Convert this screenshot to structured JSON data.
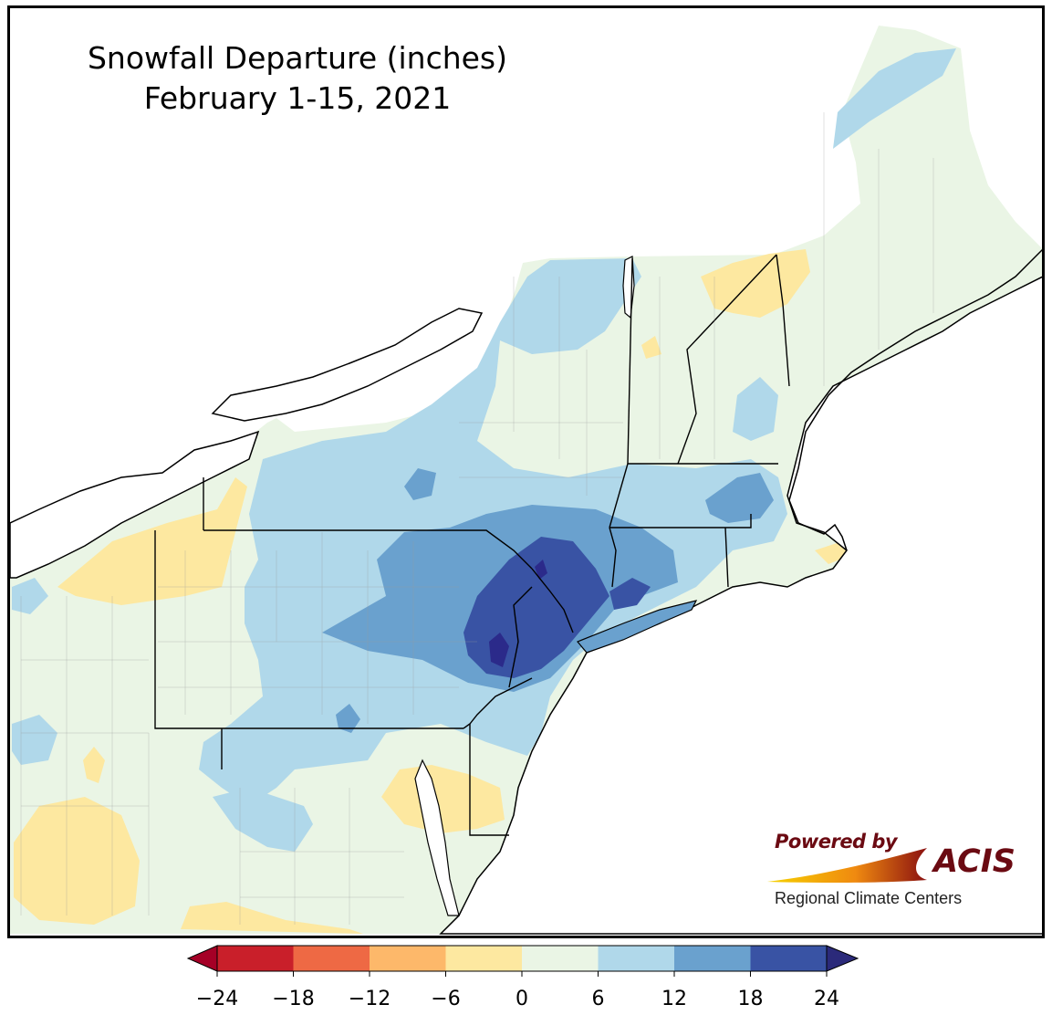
{
  "title": {
    "line1": "Snowfall Departure (inches)",
    "line2": "February 1-15, 2021"
  },
  "logo": {
    "powered_by": "Powered by",
    "acis": "ACIS",
    "regional": "Regional Climate Centers"
  },
  "legend": {
    "ticks": [
      "−24",
      "−18",
      "−12",
      "−6",
      "0",
      "6",
      "12",
      "18",
      "24"
    ],
    "bins": [
      {
        "range": "-24 to -18",
        "color": "#c91f2a"
      },
      {
        "range": "-18 to -12",
        "color": "#ee6944"
      },
      {
        "range": "-12 to -6",
        "color": "#fdb86a"
      },
      {
        "range": "-6 to 0",
        "color": "#fde8a0"
      },
      {
        "range": "0 to 6",
        "color": "#eaf5e5"
      },
      {
        "range": "6 to 12",
        "color": "#b0d8ea"
      },
      {
        "range": "12 to 18",
        "color": "#6aa1ce"
      },
      {
        "range": "18 to 24",
        "color": "#3953a4"
      }
    ],
    "under_color": "#a50026",
    "over_color": "#2b2a7a"
  },
  "colors": {
    "land_base": "#eaf5e5",
    "water": "#ffffff",
    "dry_light": "#fde8a0",
    "snow_light": "#b0d8ea",
    "snow_mid": "#6aa1ce",
    "snow_heavy": "#3953a4",
    "snow_max": "#2b2a8a"
  }
}
